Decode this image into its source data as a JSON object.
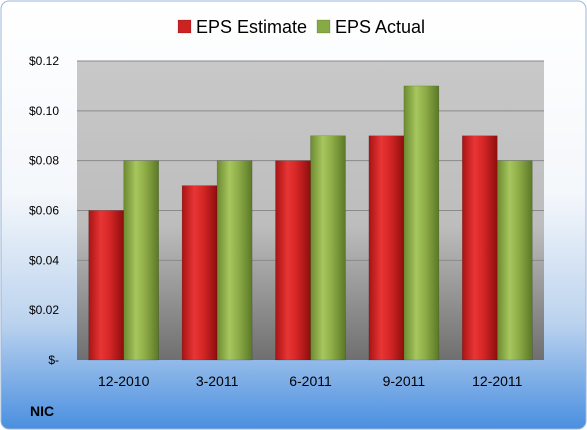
{
  "chart_data": {
    "type": "bar",
    "categories": [
      "12-2010",
      "3-2011",
      "6-2011",
      "9-2011",
      "12-2011"
    ],
    "series": [
      {
        "name": "EPS Estimate",
        "values": [
          0.06,
          0.07,
          0.08,
          0.09,
          0.09
        ]
      },
      {
        "name": "EPS Actual",
        "values": [
          0.08,
          0.08,
          0.09,
          0.11,
          0.08
        ]
      }
    ],
    "ylim": [
      0,
      0.12
    ],
    "yticks": [
      0,
      0.02,
      0.04,
      0.06,
      0.08,
      0.1,
      0.12
    ],
    "ytick_labels": [
      "$-",
      "$0.02",
      "$0.04",
      "$0.06",
      "$0.08",
      "$0.10",
      "$0.12"
    ],
    "grid": true,
    "legend_position": "top",
    "series_colors": [
      "#cc2222",
      "#88aa44"
    ]
  },
  "footer": {
    "ticker": "NIC"
  }
}
